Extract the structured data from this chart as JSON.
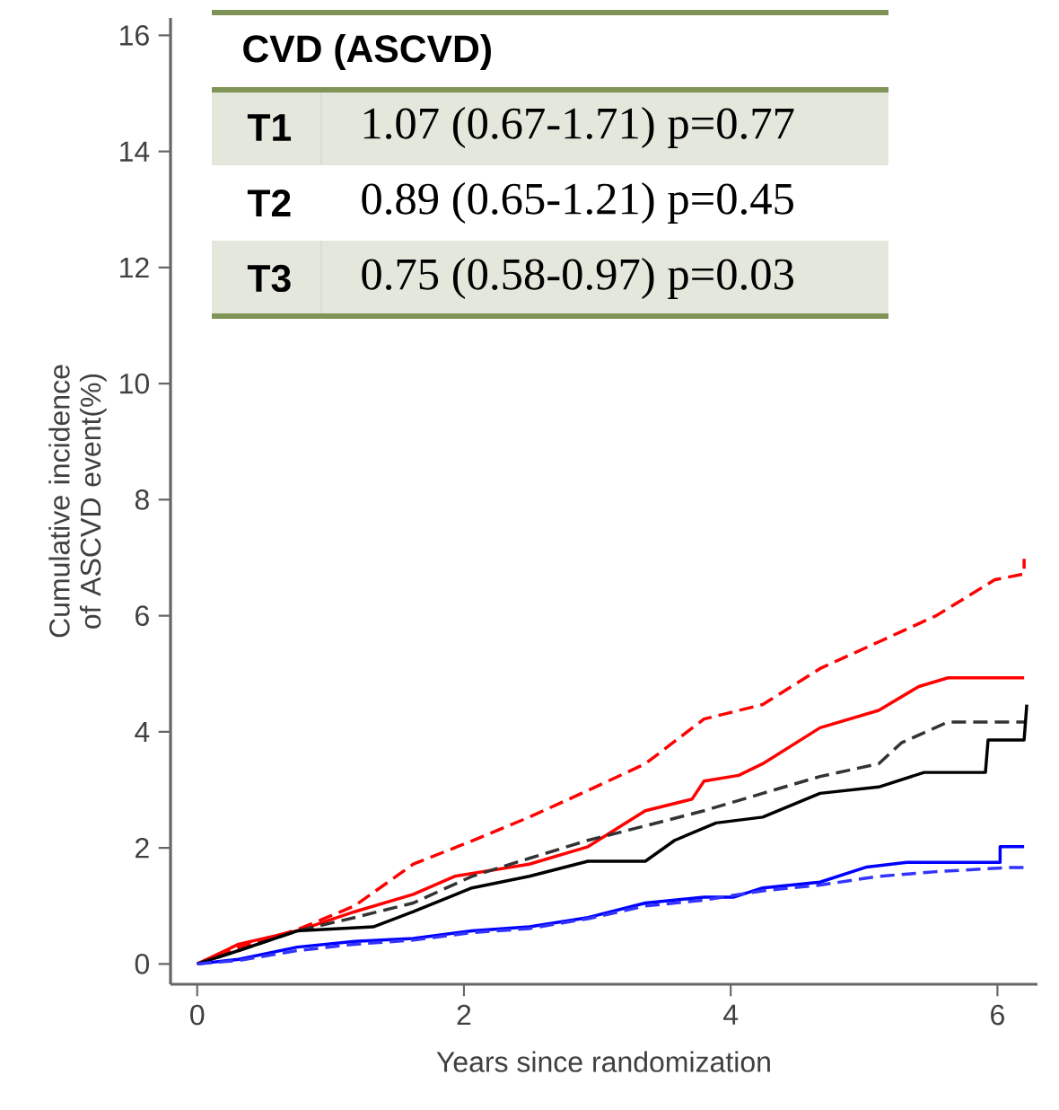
{
  "chart_data": {
    "type": "line",
    "xlabel": "Years since randomization",
    "ylabel": "Cumulative incidence of ASCVD event(%)",
    "xlim": [
      -0.2,
      6.3
    ],
    "ylim": [
      -0.35,
      16.3
    ],
    "xticks": [
      0,
      2,
      4,
      6
    ],
    "yticks": [
      0,
      2,
      4,
      6,
      8,
      10,
      12,
      14,
      16
    ],
    "annotations": [
      "CVD (ASCVD)",
      "T1",
      "1.07 (0.67-1.71) p=0.77",
      "T2",
      "0.89 (0.65-1.21) p=0.45",
      "T3",
      "0.75 (0.58-0.97) p=0.03"
    ],
    "series": [
      {
        "color": "#ff0000",
        "line_style": "dashed",
        "x": [
          0,
          0.31,
          0.75,
          1.18,
          1.62,
          2.06,
          2.49,
          2.93,
          3.36,
          3.8,
          4.24,
          4.67,
          5.11,
          5.54,
          5.98,
          6.2,
          6.2
        ],
        "values": [
          0,
          0.29,
          0.59,
          1.0,
          1.72,
          2.12,
          2.53,
          2.99,
          3.45,
          4.22,
          4.47,
          5.09,
          5.55,
          6.0,
          6.62,
          6.72,
          6.98
        ]
      },
      {
        "color": "#ff0000",
        "line_style": "solid",
        "x": [
          0,
          0.31,
          0.75,
          1.18,
          1.62,
          1.93,
          2.49,
          2.93,
          3.36,
          3.71,
          3.8,
          4.06,
          4.24,
          4.67,
          5.11,
          5.41,
          5.63,
          6.2
        ],
        "values": [
          0,
          0.34,
          0.57,
          0.9,
          1.2,
          1.51,
          1.72,
          2.02,
          2.64,
          2.84,
          3.15,
          3.25,
          3.45,
          4.07,
          4.37,
          4.78,
          4.93,
          4.93
        ]
      },
      {
        "color": "#333333",
        "line_style": "dashed",
        "x": [
          0,
          0.31,
          0.75,
          1.18,
          1.62,
          2.06,
          2.49,
          2.93,
          3.36,
          3.8,
          4.24,
          4.67,
          5.11,
          5.28,
          5.63,
          6.2
        ],
        "values": [
          0,
          0.23,
          0.57,
          0.8,
          1.05,
          1.51,
          1.82,
          2.13,
          2.38,
          2.64,
          2.94,
          3.23,
          3.45,
          3.81,
          4.17,
          4.17
        ]
      },
      {
        "color": "#000000",
        "line_style": "solid",
        "x": [
          0,
          0.31,
          0.75,
          1.32,
          1.62,
          2.06,
          2.49,
          2.93,
          3.36,
          3.58,
          3.89,
          4.24,
          4.67,
          5.11,
          5.45,
          5.91,
          5.93,
          6.2,
          6.22
        ],
        "values": [
          0,
          0.23,
          0.57,
          0.64,
          0.9,
          1.31,
          1.51,
          1.77,
          1.77,
          2.13,
          2.43,
          2.53,
          2.94,
          3.05,
          3.3,
          3.3,
          3.86,
          3.86,
          4.47
        ]
      },
      {
        "color": "#0000ff",
        "line_style": "solid",
        "x": [
          0,
          0.31,
          0.75,
          1.18,
          1.62,
          2.06,
          2.49,
          2.93,
          3.36,
          3.8,
          4.02,
          4.24,
          4.67,
          5.02,
          5.32,
          6.02,
          6.02,
          6.2
        ],
        "values": [
          0,
          0.08,
          0.29,
          0.39,
          0.44,
          0.57,
          0.64,
          0.8,
          1.05,
          1.15,
          1.15,
          1.31,
          1.41,
          1.67,
          1.75,
          1.75,
          2.02,
          2.02
        ]
      },
      {
        "color": "#3333ff",
        "line_style": "dashed",
        "x": [
          0,
          0.31,
          0.75,
          1.18,
          1.62,
          2.06,
          2.49,
          2.93,
          3.36,
          3.8,
          4.24,
          4.67,
          5.11,
          5.54,
          6.07,
          6.2
        ],
        "values": [
          0,
          0.06,
          0.23,
          0.34,
          0.41,
          0.54,
          0.61,
          0.78,
          1.0,
          1.1,
          1.26,
          1.36,
          1.51,
          1.59,
          1.66,
          1.66
        ]
      }
    ]
  }
}
